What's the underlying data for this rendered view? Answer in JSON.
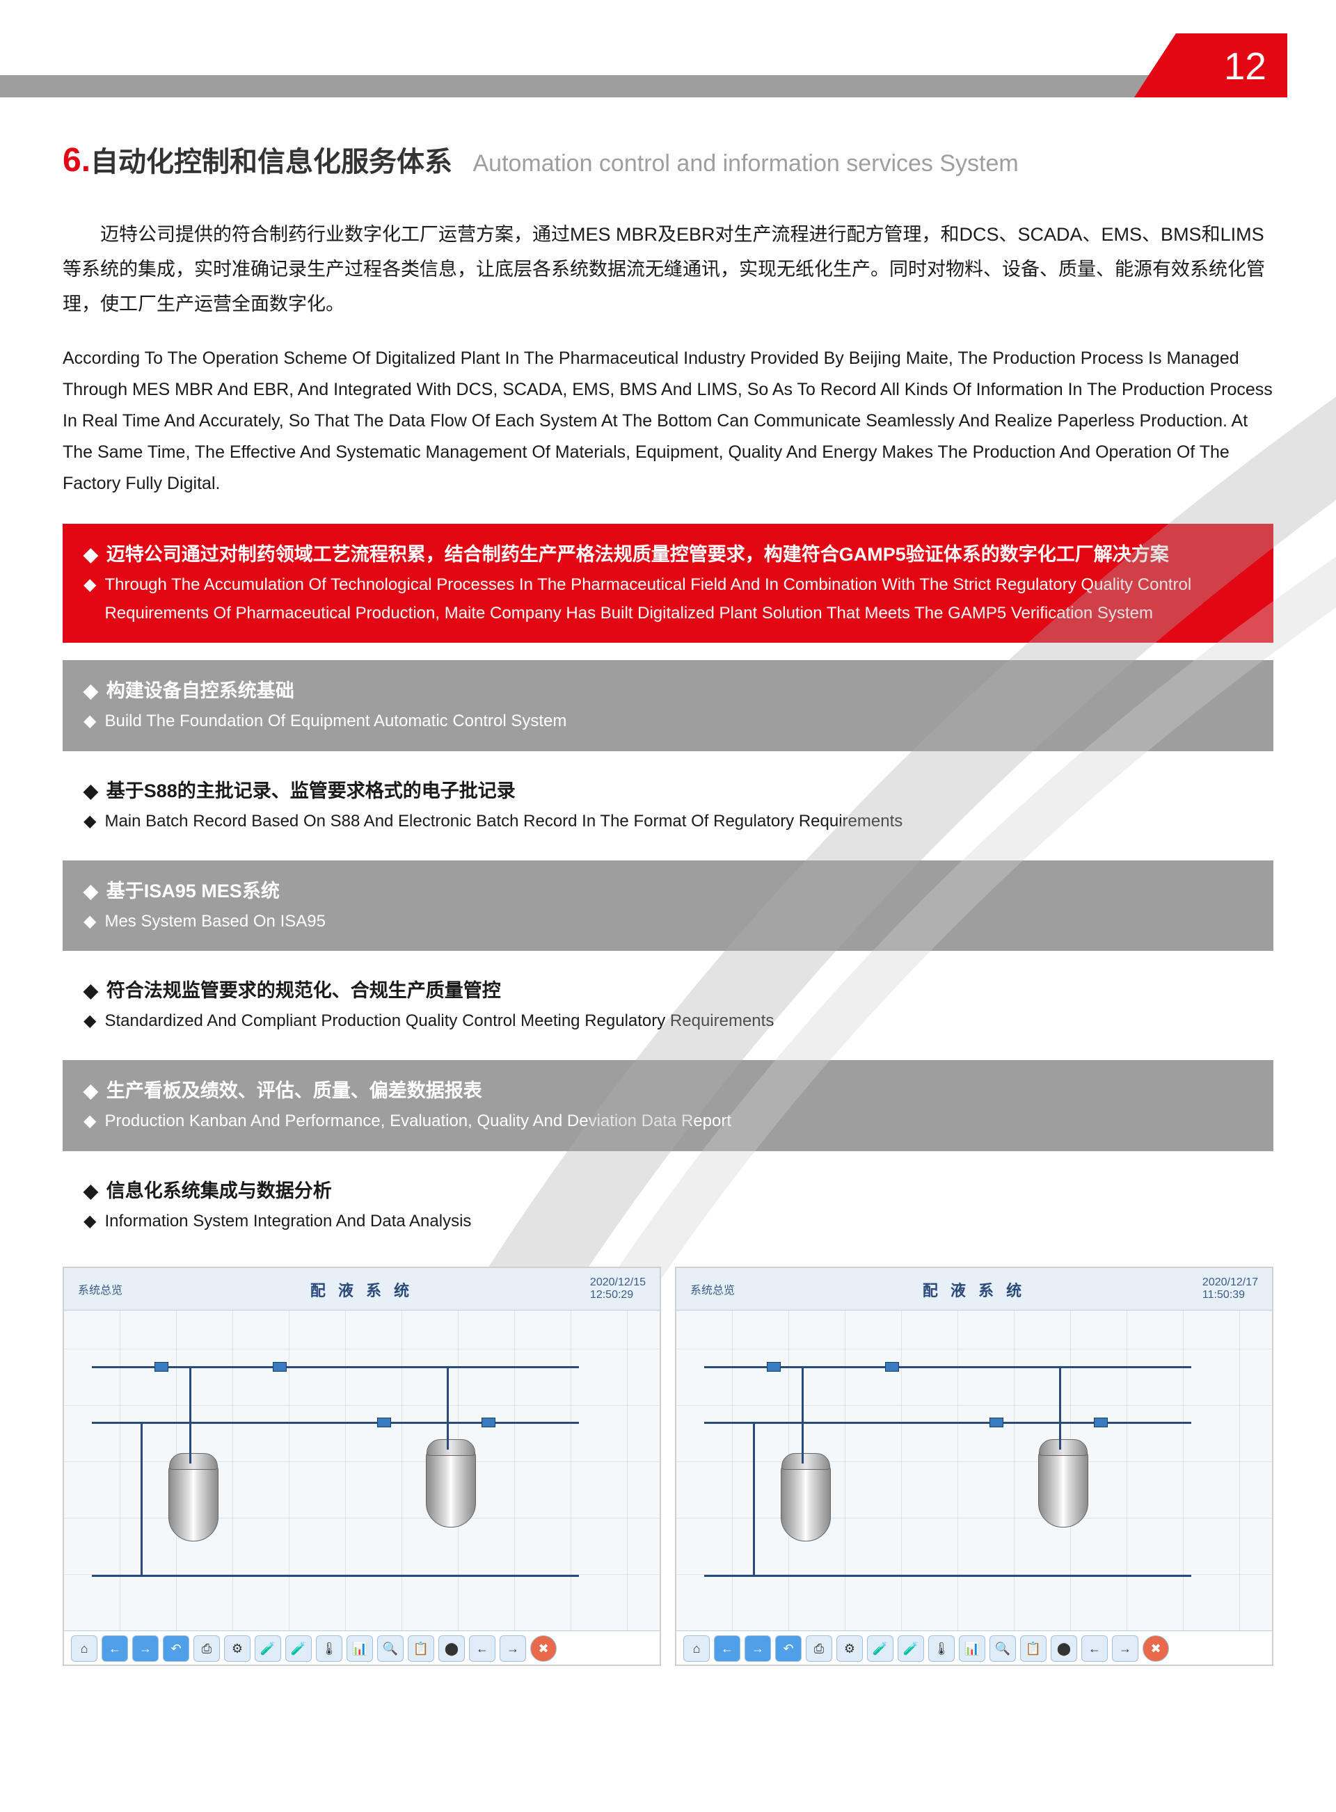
{
  "page_number": "12",
  "colors": {
    "accent_red": "#e30613",
    "gray_bar": "#9e9e9e",
    "text_dark": "#1a1a1a",
    "subtitle_gray": "#9e9e9e"
  },
  "heading": {
    "number": "6.",
    "title_cn": "自动化控制和信息化服务体系",
    "title_en": "Automation control and information services System"
  },
  "intro_cn": "迈特公司提供的符合制药行业数字化工厂运营方案，通过MES MBR及EBR对生产流程进行配方管理，和DCS、SCADA、EMS、BMS和LIMS等系统的集成，实时准确记录生产过程各类信息，让底层各系统数据流无缝通讯，实现无纸化生产。同时对物料、设备、质量、能源有效系统化管理，使工厂生产运营全面数字化。",
  "intro_en": "According To The Operation Scheme Of Digitalized Plant In The Pharmaceutical Industry Provided By Beijing Maite, The Production Process Is Managed Through MES MBR And EBR, And Integrated With DCS, SCADA, EMS, BMS And LIMS, So As To Record All Kinds Of Information In The Production Process In Real Time And Accurately, So That The Data Flow Of Each System At The Bottom Can Communicate Seamlessly And Realize Paperless Production. At The Same Time, The Effective And Systematic Management Of Materials, Equipment, Quality And Energy Makes The Production And Operation Of The Factory Fully Digital.",
  "bullets": [
    {
      "style": "red",
      "cn": "迈特公司通过对制药领域工艺流程积累，结合制药生产严格法规质量控管要求，构建符合GAMP5验证体系的数字化工厂解决方案",
      "en": "Through The Accumulation Of Technological Processes In The Pharmaceutical Field And In Combination With The Strict Regulatory Quality Control Requirements Of Pharmaceutical Production, Maite Company Has Built  Digitalized Plant Solution That Meets The GAMP5 Verification System"
    },
    {
      "style": "gray",
      "cn": "构建设备自控系统基础",
      "en": "Build The Foundation Of Equipment Automatic Control System"
    },
    {
      "style": "white",
      "cn": "基于S88的主批记录、监管要求格式的电子批记录",
      "en": "Main Batch Record Based On S88 And Electronic Batch Record In The Format Of Regulatory Requirements"
    },
    {
      "style": "gray",
      "cn": "基于ISA95 MES系统",
      "en": "Mes System Based On ISA95"
    },
    {
      "style": "white",
      "cn": "符合法规监管要求的规范化、合规生产质量管控",
      "en": "Standardized And Compliant Production Quality Control Meeting Regulatory Requirements"
    },
    {
      "style": "gray",
      "cn": "生产看板及绩效、评估、质量、偏差数据报表",
      "en": "Production Kanban And Performance, Evaluation, Quality And Deviation Data Report"
    },
    {
      "style": "white",
      "cn": "信息化系统集成与数据分析",
      "en": "Information System Integration And Data Analysis"
    }
  ],
  "diagrams": {
    "left": {
      "title": "配 液 系 统",
      "header_left": "系统总览",
      "header_date": "2020/12/15",
      "header_time": "12:50:29"
    },
    "right": {
      "title": "配 液 系 统",
      "header_left": "系统总览",
      "header_date": "2020/12/17",
      "header_time": "11:50:39"
    },
    "toolbar_icons": [
      "⌂",
      "←",
      "→",
      "↶",
      "⎙",
      "⚙",
      "🧪",
      "🧪",
      "🌡",
      "📊",
      "🔍",
      "📋",
      "⬤",
      "←",
      "→",
      "✖"
    ]
  }
}
